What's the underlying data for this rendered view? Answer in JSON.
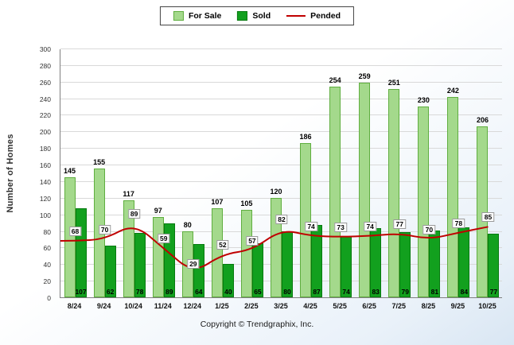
{
  "legend": {
    "for_sale": "For Sale",
    "sold": "Sold",
    "pended": "Pended"
  },
  "ylabel": "Number of Homes",
  "footer": "Copyright © Trendgraphix, Inc.",
  "colors": {
    "for_sale": "#A4D98C",
    "for_sale_border": "#5FAE3F",
    "sold": "#12A01E",
    "sold_border": "#077A10",
    "pended": "#C00000"
  },
  "chart_data": {
    "type": "bar",
    "title": "",
    "xlabel": "",
    "ylabel": "Number of Homes",
    "ylim": [
      0,
      300
    ],
    "ytick_step": 20,
    "grid": true,
    "legend_position": "top",
    "categories": [
      "8/24",
      "9/24",
      "10/24",
      "11/24",
      "12/24",
      "1/25",
      "2/25",
      "3/25",
      "4/25",
      "5/25",
      "6/25",
      "7/25",
      "8/25",
      "9/25",
      "10/25"
    ],
    "series": [
      {
        "name": "For Sale",
        "type": "bar",
        "values": [
          145,
          155,
          117,
          97,
          80,
          107,
          105,
          120,
          186,
          254,
          259,
          251,
          230,
          242,
          206
        ]
      },
      {
        "name": "Sold",
        "type": "bar",
        "values": [
          107,
          62,
          78,
          89,
          64,
          40,
          65,
          80,
          87,
          74,
          83,
          79,
          81,
          84,
          77
        ]
      },
      {
        "name": "Pended",
        "type": "line",
        "values": [
          68,
          70,
          89,
          59,
          29,
          52,
          57,
          82,
          74,
          73,
          74,
          77,
          70,
          78,
          85
        ]
      }
    ]
  }
}
